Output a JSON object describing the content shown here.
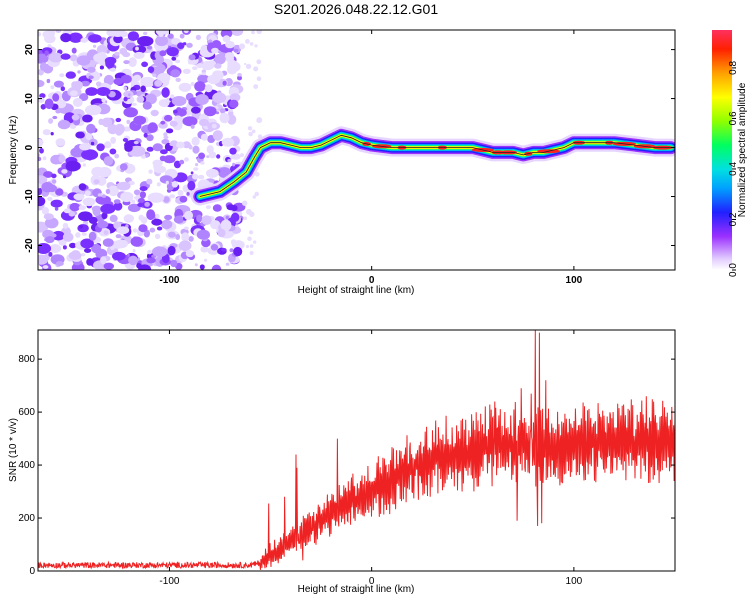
{
  "title": "S201.2026.048.22.12.G01",
  "chart_data": [
    {
      "type": "heatmap",
      "name": "spectrogram",
      "xlabel": "Height of straight line (km)",
      "ylabel": "Frequency (Hz)",
      "xlim": [
        -165,
        150
      ],
      "ylim": [
        -25,
        24
      ],
      "xticks": [
        -100,
        0,
        100
      ],
      "xtick_labels": [
        "-100",
        "0",
        "100"
      ],
      "yticks": [
        20,
        10,
        0,
        -10,
        -20
      ],
      "ytick_labels": [
        "20",
        "10",
        "0",
        "-10",
        "-20"
      ],
      "colorbar": {
        "label": "Normalized spectral amplitude",
        "range": [
          0,
          0.95
        ],
        "ticks": [
          0.0,
          0.2,
          0.4,
          0.6,
          0.8
        ],
        "tick_labels": [
          "0.0",
          "0.2",
          "0.4",
          "0.6",
          "0.8"
        ]
      },
      "ridge": {
        "x": [
          -85,
          -75,
          -68,
          -62,
          -58,
          -55,
          -50,
          -45,
          -40,
          -35,
          -30,
          -25,
          -20,
          -15,
          -10,
          -5,
          0,
          10,
          20,
          30,
          40,
          50,
          60,
          65,
          70,
          75,
          80,
          85,
          90,
          95,
          100,
          105,
          110,
          115,
          120,
          130,
          140,
          148
        ],
        "y": [
          -10,
          -9,
          -7,
          -5,
          -2,
          0,
          1,
          1,
          0.5,
          0,
          0,
          0.5,
          1.5,
          2.5,
          2,
          1,
          0.5,
          0,
          0,
          0,
          0,
          0,
          -1,
          -1,
          -1,
          -1.5,
          -1,
          -1,
          -0.5,
          0,
          1,
          1,
          1,
          1,
          1,
          0.5,
          0,
          0
        ]
      },
      "noise_region_x": [
        -165,
        -65
      ]
    },
    {
      "type": "line",
      "name": "snr",
      "xlabel": "Height of straight line (km)",
      "ylabel": "SNR (10 * v/v)",
      "xlim": [
        -165,
        150
      ],
      "ylim": [
        0,
        910
      ],
      "xticks": [
        -100,
        0,
        100
      ],
      "xtick_labels": [
        "-100",
        "0",
        "100"
      ],
      "yticks": [
        0,
        200,
        400,
        600,
        800
      ],
      "ytick_labels": [
        "0",
        "200",
        "400",
        "600",
        "800"
      ],
      "color": "#ee2222",
      "trend": {
        "x": [
          -165,
          -60,
          -55,
          -50,
          -40,
          -30,
          -20,
          -10,
          0,
          10,
          20,
          30,
          40,
          50,
          60,
          70,
          80,
          90,
          100,
          110,
          120,
          130,
          140,
          150
        ],
        "y": [
          22,
          22,
          30,
          60,
          110,
          160,
          220,
          260,
          300,
          350,
          390,
          420,
          440,
          455,
          470,
          475,
          470,
          470,
          475,
          480,
          485,
          490,
          495,
          500
        ]
      },
      "spikes": [
        {
          "x": -51,
          "y": 255
        },
        {
          "x": -43,
          "y": 280
        },
        {
          "x": -37,
          "y": 390
        },
        {
          "x": -36,
          "y": 105
        },
        {
          "x": -34,
          "y": 40
        },
        {
          "x": -17,
          "y": 500
        },
        {
          "x": -37.5,
          "y": 440
        },
        {
          "x": 61,
          "y": 640
        },
        {
          "x": 72,
          "y": 190
        },
        {
          "x": 74,
          "y": 690
        },
        {
          "x": 79,
          "y": 670
        },
        {
          "x": 81,
          "y": 910
        },
        {
          "x": 82,
          "y": 170
        },
        {
          "x": 83,
          "y": 900
        },
        {
          "x": 84,
          "y": 180
        },
        {
          "x": 86,
          "y": 720
        }
      ]
    }
  ]
}
